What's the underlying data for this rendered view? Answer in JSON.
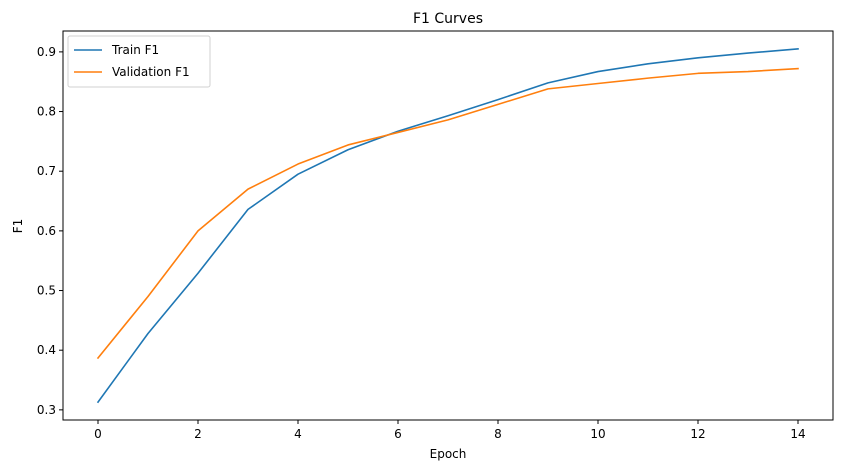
{
  "chart_data": {
    "type": "line",
    "title": "F1 Curves",
    "xlabel": "Epoch",
    "ylabel": "F1",
    "x": [
      0,
      1,
      2,
      3,
      4,
      5,
      6,
      7,
      8,
      9,
      10,
      11,
      12,
      13,
      14
    ],
    "series": [
      {
        "name": "Train F1",
        "color": "#1f77b4",
        "values": [
          0.313,
          0.428,
          0.529,
          0.636,
          0.695,
          0.736,
          0.767,
          0.793,
          0.82,
          0.848,
          0.867,
          0.88,
          0.89,
          0.898,
          0.905
        ]
      },
      {
        "name": "Validation F1",
        "color": "#ff7f0e",
        "values": [
          0.387,
          0.49,
          0.6,
          0.67,
          0.712,
          0.744,
          0.765,
          0.786,
          0.812,
          0.838,
          0.847,
          0.856,
          0.864,
          0.867,
          0.872
        ]
      }
    ],
    "xlim": [
      -0.7,
      14.7
    ],
    "ylim": [
      0.283,
      0.935
    ],
    "xticks": [
      0,
      2,
      4,
      6,
      8,
      10,
      12,
      14
    ],
    "yticks": [
      0.3,
      0.4,
      0.5,
      0.6,
      0.7,
      0.8,
      0.9
    ],
    "xtick_labels": [
      "0",
      "2",
      "4",
      "6",
      "8",
      "10",
      "12",
      "14"
    ],
    "ytick_labels": [
      "0.3",
      "0.4",
      "0.5",
      "0.6",
      "0.7",
      "0.8",
      "0.9"
    ],
    "grid": false,
    "legend_position": "top-left"
  }
}
